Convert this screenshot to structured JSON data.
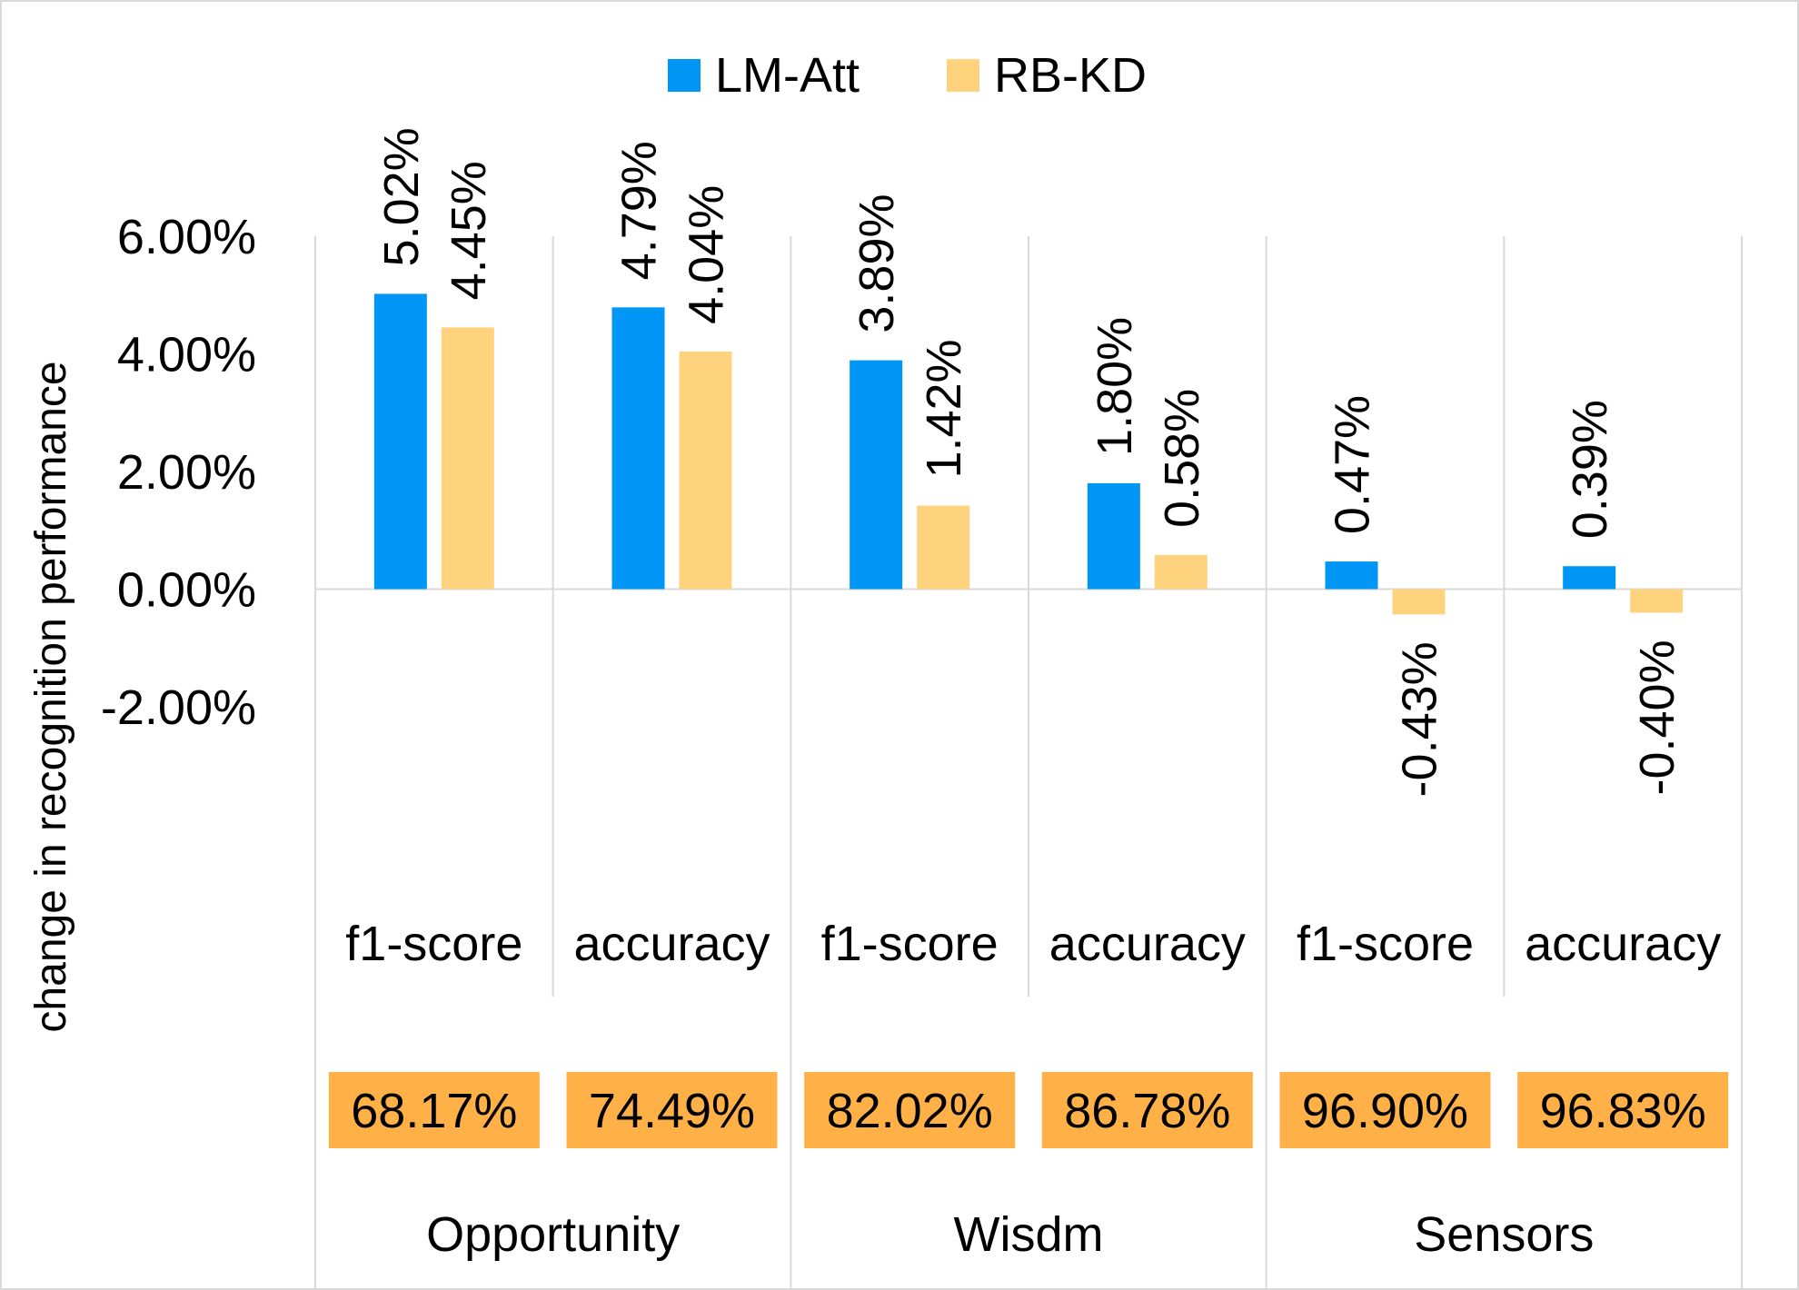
{
  "chart_data": {
    "type": "bar",
    "ylabel": "change in recognition performance",
    "ylim": [
      -2,
      6
    ],
    "y_ticks": [
      {
        "value": 6,
        "label": "6.00%"
      },
      {
        "value": 4,
        "label": "4.00%"
      },
      {
        "value": 2,
        "label": "2.00%"
      },
      {
        "value": 0,
        "label": "0.00%"
      },
      {
        "value": -2,
        "label": "-2.00%"
      }
    ],
    "legend_position": "top-center",
    "grid": false,
    "groups": [
      {
        "name": "Opportunity"
      },
      {
        "name": "Wisdm"
      },
      {
        "name": "Sensors"
      }
    ],
    "categories": [
      {
        "label": "f1-score",
        "group": 0,
        "baseline": "68.17%"
      },
      {
        "label": "accuracy",
        "group": 0,
        "baseline": "74.49%"
      },
      {
        "label": "f1-score",
        "group": 1,
        "baseline": "82.02%"
      },
      {
        "label": "accuracy",
        "group": 1,
        "baseline": "86.78%"
      },
      {
        "label": "f1-score",
        "group": 2,
        "baseline": "96.90%"
      },
      {
        "label": "accuracy",
        "group": 2,
        "baseline": "96.83%"
      }
    ],
    "series": [
      {
        "name": "LM-Att",
        "color": "#0096f6",
        "values": [
          5.02,
          4.79,
          3.89,
          1.8,
          0.47,
          0.39
        ],
        "labels": [
          "5.02%",
          "4.79%",
          "3.89%",
          "1.80%",
          "0.47%",
          "0.39%"
        ]
      },
      {
        "name": "RB-KD",
        "color": "#ffd37e",
        "values": [
          4.45,
          4.04,
          1.42,
          0.58,
          -0.43,
          -0.4
        ],
        "labels": [
          "4.45%",
          "4.04%",
          "1.42%",
          "0.58%",
          "-0.43%",
          "-0.40%"
        ]
      }
    ],
    "baseline_box_color": "#ffb148"
  }
}
